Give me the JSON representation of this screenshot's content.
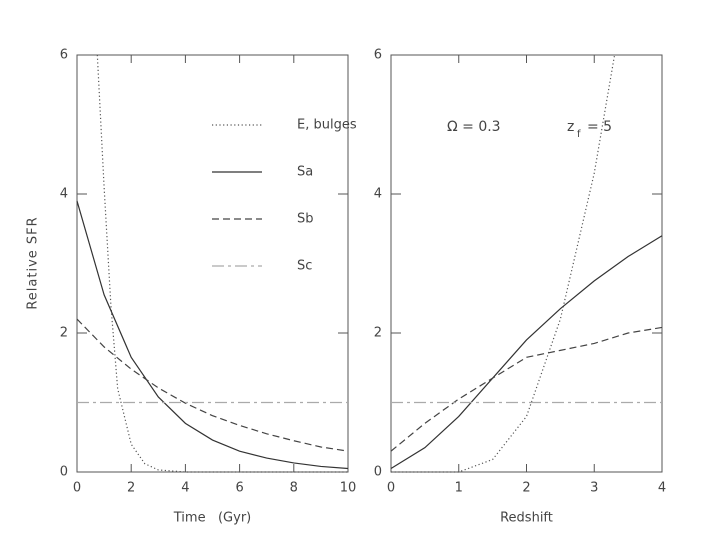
{
  "chart_data": [
    {
      "type": "line",
      "xlabel": "Time   (Gyr)",
      "ylabel": "Relative SFR",
      "xlim": [
        0,
        10
      ],
      "ylim": [
        0,
        6
      ],
      "xticks": [
        0,
        2,
        4,
        6,
        8,
        10
      ],
      "yticks": [
        0,
        2,
        4,
        6
      ],
      "legend": "upper right",
      "series": [
        {
          "name": "E, bulges",
          "color": "#555555",
          "style": "dotted",
          "x": [
            0.75,
            1,
            1.25,
            1.5,
            2,
            2.5,
            3,
            4,
            6,
            8,
            10
          ],
          "values": [
            6,
            4.1,
            2.4,
            1.2,
            0.4,
            0.12,
            0.03,
            0,
            0,
            0,
            0
          ]
        },
        {
          "name": "Sa",
          "color": "#333333",
          "style": "solid",
          "x": [
            0,
            1,
            2,
            3,
            4,
            5,
            6,
            7,
            8,
            9,
            10
          ],
          "values": [
            3.9,
            2.55,
            1.65,
            1.08,
            0.7,
            0.46,
            0.3,
            0.2,
            0.13,
            0.08,
            0.05
          ]
        },
        {
          "name": "Sb",
          "color": "#444444",
          "style": "dashed",
          "x": [
            0,
            1,
            2,
            3,
            4,
            5,
            6,
            7,
            8,
            9,
            10
          ],
          "values": [
            2.2,
            1.8,
            1.48,
            1.21,
            0.99,
            0.81,
            0.67,
            0.55,
            0.45,
            0.36,
            0.3
          ]
        },
        {
          "name": "Sc",
          "color": "#aaaaaa",
          "style": "dashdot",
          "x": [
            0,
            10
          ],
          "values": [
            1,
            1
          ]
        }
      ]
    },
    {
      "type": "line",
      "xlabel": "Redshift",
      "xlim": [
        0,
        4
      ],
      "ylim": [
        0,
        6
      ],
      "xticks": [
        0,
        1,
        2,
        3,
        4
      ],
      "yticks": [
        0,
        2,
        4,
        6
      ],
      "annotations": [
        "Ω = 0.3",
        "z",
        "f",
        "= 5"
      ],
      "series": [
        {
          "color": "#555555",
          "style": "dotted",
          "x": [
            0,
            1,
            1.5,
            2,
            2.5,
            3,
            3.3
          ],
          "values": [
            0,
            0,
            0.18,
            0.8,
            2.2,
            4.3,
            6
          ]
        },
        {
          "color": "#333333",
          "style": "solid",
          "x": [
            0,
            0.5,
            1,
            1.5,
            2,
            2.5,
            3,
            3.5,
            4
          ],
          "values": [
            0.05,
            0.35,
            0.8,
            1.35,
            1.9,
            2.35,
            2.75,
            3.1,
            3.4
          ]
        },
        {
          "color": "#444444",
          "style": "dashed",
          "x": [
            0,
            0.5,
            1,
            1.5,
            2,
            2.5,
            3,
            3.5,
            4
          ],
          "values": [
            0.3,
            0.7,
            1.05,
            1.35,
            1.65,
            1.75,
            1.85,
            2.0,
            2.08
          ]
        },
        {
          "color": "#aaaaaa",
          "style": "dashdot",
          "x": [
            0,
            4
          ],
          "values": [
            1,
            1
          ]
        }
      ]
    }
  ]
}
